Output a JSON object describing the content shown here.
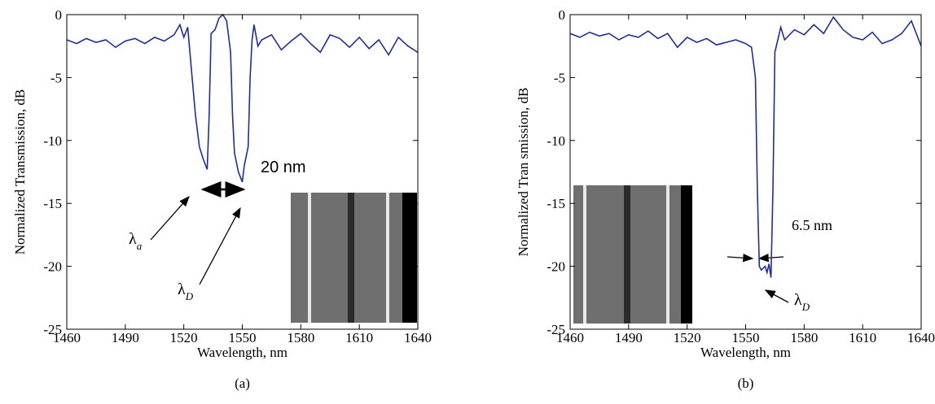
{
  "chart_data": [
    {
      "type": "line",
      "xlabel": "Wavelength, nm",
      "ylabel": "Normalized Transmission, dB",
      "caption": "(a)",
      "xlim": [
        1460,
        1640
      ],
      "xticks": [
        1460,
        1490,
        1520,
        1550,
        1580,
        1610,
        1640
      ],
      "ylim": [
        -25,
        0
      ],
      "yticks": [
        -25,
        -20,
        -15,
        -10,
        -5,
        0
      ],
      "color": "#1f2f96",
      "x": [
        1460,
        1465,
        1470,
        1475,
        1480,
        1485,
        1490,
        1495,
        1500,
        1505,
        1510,
        1515,
        1518,
        1520,
        1522,
        1524,
        1526,
        1528,
        1530,
        1532,
        1533,
        1534,
        1536,
        1538,
        1540,
        1542,
        1544,
        1545,
        1546,
        1548,
        1550,
        1551,
        1553,
        1554,
        1555,
        1556,
        1558,
        1560,
        1565,
        1570,
        1575,
        1580,
        1585,
        1590,
        1595,
        1600,
        1605,
        1610,
        1615,
        1620,
        1625,
        1630,
        1635,
        1640
      ],
      "values": [
        -2,
        -2.3,
        -1.9,
        -2.2,
        -2,
        -2.6,
        -2.1,
        -1.9,
        -2.3,
        -1.8,
        -2.1,
        -1.6,
        -0.8,
        -1.8,
        -1,
        -4.5,
        -8,
        -10.5,
        -11.5,
        -12.3,
        -8,
        -1.5,
        -1.2,
        -0.3,
        0,
        -0.5,
        -3,
        -8,
        -11,
        -12.5,
        -13.3,
        -12,
        -10.5,
        -5,
        -2,
        -0.8,
        -2.5,
        -2,
        -1.6,
        -2.8,
        -2.1,
        -1.5,
        -2.3,
        -3,
        -1.6,
        -1.9,
        -2.6,
        -1.8,
        -2.7,
        -2,
        -3.2,
        -1.8,
        -2.5,
        -3
      ],
      "annotations": [
        {
          "text": "20 nm"
        },
        {
          "text": "λ",
          "sub": "a"
        },
        {
          "text": "λ",
          "sub": "D"
        }
      ]
    },
    {
      "type": "line",
      "xlabel": "Wavelength, nm",
      "ylabel": "Normalized Tran smission, dB",
      "caption": "(b)",
      "xlim": [
        1460,
        1640
      ],
      "xticks": [
        1460,
        1490,
        1520,
        1550,
        1580,
        1610,
        1640
      ],
      "ylim": [
        -25,
        0
      ],
      "yticks": [
        -25,
        -20,
        -15,
        -10,
        -5,
        0
      ],
      "color": "#1f2f96",
      "x": [
        1460,
        1465,
        1470,
        1475,
        1480,
        1485,
        1490,
        1495,
        1500,
        1505,
        1510,
        1515,
        1520,
        1525,
        1530,
        1535,
        1540,
        1545,
        1550,
        1553,
        1555,
        1556,
        1557,
        1558,
        1560,
        1561,
        1562,
        1563,
        1564,
        1565,
        1568,
        1570,
        1575,
        1580,
        1585,
        1590,
        1595,
        1600,
        1605,
        1610,
        1615,
        1620,
        1625,
        1630,
        1635,
        1640
      ],
      "values": [
        -1.5,
        -1.8,
        -1.4,
        -1.7,
        -1.5,
        -2,
        -1.6,
        -1.8,
        -1.3,
        -1.9,
        -1.5,
        -2.6,
        -1.8,
        -2.2,
        -1.9,
        -2.4,
        -2.2,
        -2,
        -2.3,
        -2.6,
        -5,
        -14,
        -20,
        -20.3,
        -20,
        -20.5,
        -19.8,
        -20.9,
        -14,
        -3,
        -1,
        -2,
        -1.2,
        -1.6,
        -0.8,
        -1.5,
        -0.2,
        -1.2,
        -1.8,
        -2,
        -1.4,
        -2.3,
        -2,
        -1.5,
        -0.5,
        -2.5
      ],
      "annotations": [
        {
          "text": "6.5 nm"
        },
        {
          "text": "λ",
          "sub": "D"
        }
      ]
    }
  ]
}
